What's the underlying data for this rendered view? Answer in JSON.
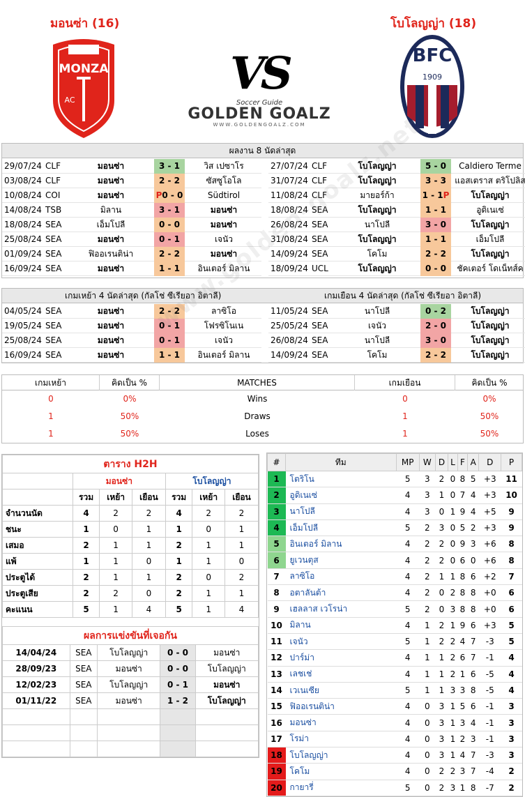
{
  "header": {
    "home_name": "มอนซ่า (16)",
    "away_name": "โบโลญญ่า (18)",
    "vs": "VS",
    "brand_small": "Soccer Guide",
    "brand_big": "GOLDEN GOALZ",
    "brand_url": "WWW.GOLDENGOALZ.COM",
    "home_logo_text": "MONZA",
    "home_logo_ac": "AC",
    "away_logo_text": "BFC",
    "away_logo_year": "1909",
    "watermark": "www.golden-goalz.net"
  },
  "last8": {
    "title": "ผลงาน 8 นัดล่าสุด",
    "home": [
      {
        "d": "29/07/24",
        "c": "CLF",
        "h": "มอนซ่า",
        "s": "3 - 1",
        "a": "วิส เปซาโร",
        "k": "g",
        "bh": true
      },
      {
        "d": "03/08/24",
        "c": "CLF",
        "h": "มอนซ่า",
        "s": "2 - 2",
        "a": "ซัสซูโอโล",
        "k": "o",
        "bh": true
      },
      {
        "d": "10/08/24",
        "c": "COI",
        "h": "มอนซ่า",
        "s": "0 - 0",
        "pre": "P",
        "a": "Südtirol",
        "k": "o",
        "bh": true
      },
      {
        "d": "14/08/24",
        "c": "TSB",
        "h": "มิลาน",
        "s": "3 - 1",
        "a": "มอนซ่า",
        "k": "r",
        "ba": true
      },
      {
        "d": "18/08/24",
        "c": "SEA",
        "h": "เอ็มโปลี",
        "s": "0 - 0",
        "a": "มอนซ่า",
        "k": "o",
        "ba": true
      },
      {
        "d": "25/08/24",
        "c": "SEA",
        "h": "มอนซ่า",
        "s": "0 - 1",
        "a": "เจนัว",
        "k": "r",
        "bh": true
      },
      {
        "d": "01/09/24",
        "c": "SEA",
        "h": "ฟิออเรนติน่า",
        "s": "2 - 2",
        "a": "มอนซ่า",
        "k": "o",
        "ba": true
      },
      {
        "d": "16/09/24",
        "c": "SEA",
        "h": "มอนซ่า",
        "s": "1 - 1",
        "a": "อินเตอร์ มิลาน",
        "k": "o",
        "bh": true
      }
    ],
    "away": [
      {
        "d": "27/07/24",
        "c": "CLF",
        "h": "โบโลญญ่า",
        "s": "5 - 0",
        "a": "Caldiero Terme",
        "k": "g",
        "bh": true
      },
      {
        "d": "31/07/24",
        "c": "CLF",
        "h": "โบโลญญ่า",
        "s": "3 - 3",
        "a": "แอสเตราส ตริโปลิส",
        "k": "o",
        "bh": true
      },
      {
        "d": "11/08/24",
        "c": "CLF",
        "h": "มายอร์ก้า",
        "s": "1 - 1",
        "post": "P",
        "a": "โบโลญญ่า",
        "k": "o",
        "ba": true
      },
      {
        "d": "18/08/24",
        "c": "SEA",
        "h": "โบโลญญ่า",
        "s": "1 - 1",
        "a": "อูดิเนเซ่",
        "k": "o",
        "bh": true
      },
      {
        "d": "26/08/24",
        "c": "SEA",
        "h": "นาโปลี",
        "s": "3 - 0",
        "a": "โบโลญญ่า",
        "k": "r",
        "ba": true
      },
      {
        "d": "31/08/24",
        "c": "SEA",
        "h": "โบโลญญ่า",
        "s": "1 - 1",
        "a": "เอ็มโปลี",
        "k": "o",
        "bh": true
      },
      {
        "d": "14/09/24",
        "c": "SEA",
        "h": "โคโม",
        "s": "2 - 2",
        "a": "โบโลญญ่า",
        "k": "o",
        "ba": true
      },
      {
        "d": "18/09/24",
        "c": "UCL",
        "h": "โบโลญญ่า",
        "s": "0 - 0",
        "a": "ชัคเตอร์ โดเน็ทส์ค",
        "k": "o",
        "bh": true
      }
    ]
  },
  "last4": {
    "home_title": "เกมเหย้า 4 นัดล่าสุด (กัลโช่ ซีเรียอา อิตาลี)",
    "away_title": "เกมเยือน 4 นัดล่าสุด (กัลโช่ ซีเรียอา อิตาลี)",
    "home": [
      {
        "d": "04/05/24",
        "c": "SEA",
        "h": "มอนซ่า",
        "s": "2 - 2",
        "a": "ลาซิโอ",
        "k": "o",
        "bh": true
      },
      {
        "d": "19/05/24",
        "c": "SEA",
        "h": "มอนซ่า",
        "s": "0 - 1",
        "a": "โฟรซิโนเน",
        "k": "r",
        "bh": true
      },
      {
        "d": "25/08/24",
        "c": "SEA",
        "h": "มอนซ่า",
        "s": "0 - 1",
        "a": "เจนัว",
        "k": "r",
        "bh": true
      },
      {
        "d": "16/09/24",
        "c": "SEA",
        "h": "มอนซ่า",
        "s": "1 - 1",
        "a": "อินเตอร์ มิลาน",
        "k": "o",
        "bh": true
      }
    ],
    "away": [
      {
        "d": "11/05/24",
        "c": "SEA",
        "h": "นาโปลี",
        "s": "0 - 2",
        "a": "โบโลญญ่า",
        "k": "g",
        "ba": true
      },
      {
        "d": "25/05/24",
        "c": "SEA",
        "h": "เจนัว",
        "s": "2 - 0",
        "a": "โบโลญญ่า",
        "k": "r",
        "ba": true
      },
      {
        "d": "26/08/24",
        "c": "SEA",
        "h": "นาโปลี",
        "s": "3 - 0",
        "a": "โบโลญญ่า",
        "k": "r",
        "ba": true
      },
      {
        "d": "14/09/24",
        "c": "SEA",
        "h": "โคโม",
        "s": "2 - 2",
        "a": "โบโลญญ่า",
        "k": "o",
        "ba": true
      }
    ]
  },
  "summary": {
    "h_home": "เกมเหย้า",
    "h_pct": "คิดเป็น %",
    "h_matches": "MATCHES",
    "h_away": "เกมเยือน",
    "h_pct2": "คิดเป็น %",
    "rows": [
      {
        "l": "Wins",
        "hv": "0",
        "hp": "0%",
        "av": "0",
        "ap": "0%"
      },
      {
        "l": "Draws",
        "hv": "1",
        "hp": "50%",
        "av": "1",
        "ap": "50%"
      },
      {
        "l": "Loses",
        "hv": "1",
        "hp": "50%",
        "av": "1",
        "ap": "50%"
      }
    ]
  },
  "h2h": {
    "title": "ตาราง H2H",
    "home": "มอนซ่า",
    "away": "โบโลญญ่า",
    "cols": [
      "รวม",
      "เหย้า",
      "เยือน",
      "รวม",
      "เหย้า",
      "เยือน"
    ],
    "rows": [
      {
        "l": "จำนวนนัด",
        "v": [
          "4",
          "2",
          "2",
          "4",
          "2",
          "2"
        ]
      },
      {
        "l": "ชนะ",
        "v": [
          "1",
          "0",
          "1",
          "1",
          "0",
          "1"
        ]
      },
      {
        "l": "เสมอ",
        "v": [
          "2",
          "1",
          "1",
          "2",
          "1",
          "1"
        ]
      },
      {
        "l": "แพ้",
        "v": [
          "1",
          "1",
          "0",
          "1",
          "1",
          "0"
        ]
      },
      {
        "l": "ประตูได้",
        "v": [
          "2",
          "1",
          "1",
          "2",
          "0",
          "2"
        ]
      },
      {
        "l": "ประตูเสีย",
        "v": [
          "2",
          "2",
          "0",
          "2",
          "1",
          "1"
        ]
      },
      {
        "l": "คะแนน",
        "v": [
          "5",
          "1",
          "4",
          "5",
          "1",
          "4"
        ]
      }
    ],
    "matches_title": "ผลการแข่งขันที่เจอกัน",
    "matches": [
      {
        "d": "14/04/24",
        "c": "SEA",
        "h": "โบโลญญ่า",
        "s": "0 - 0",
        "a": "มอนซ่า"
      },
      {
        "d": "28/09/23",
        "c": "SEA",
        "h": "มอนซ่า",
        "s": "0 - 0",
        "a": "โบโลญญ่า"
      },
      {
        "d": "12/02/23",
        "c": "SEA",
        "h": "โบโลญญ่า",
        "s": "0 - 1",
        "a": "มอนซ่า",
        "ba": true
      },
      {
        "d": "01/11/22",
        "c": "SEA",
        "h": "มอนซ่า",
        "s": "1 - 2",
        "a": "โบโลญญ่า",
        "ba": true
      }
    ]
  },
  "standings": {
    "cols": [
      "#",
      "ทีม",
      "MP",
      "W",
      "D",
      "L",
      "F",
      "A",
      "D",
      "P"
    ],
    "rows": [
      [
        "1",
        "โตริโน",
        "5",
        "3",
        "2",
        "0",
        "8",
        "5",
        "+3",
        "11"
      ],
      [
        "2",
        "อูดิเนเซ่",
        "4",
        "3",
        "1",
        "0",
        "7",
        "4",
        "+3",
        "10"
      ],
      [
        "3",
        "นาโปลี",
        "4",
        "3",
        "0",
        "1",
        "9",
        "4",
        "+5",
        "9"
      ],
      [
        "4",
        "เอ็มโปลี",
        "5",
        "2",
        "3",
        "0",
        "5",
        "2",
        "+3",
        "9"
      ],
      [
        "5",
        "อินเตอร์ มิลาน",
        "4",
        "2",
        "2",
        "0",
        "9",
        "3",
        "+6",
        "8"
      ],
      [
        "6",
        "ยูเวนตุส",
        "4",
        "2",
        "2",
        "0",
        "6",
        "0",
        "+6",
        "8"
      ],
      [
        "7",
        "ลาซิโอ",
        "4",
        "2",
        "1",
        "1",
        "8",
        "6",
        "+2",
        "7"
      ],
      [
        "8",
        "อตาลันต้า",
        "4",
        "2",
        "0",
        "2",
        "8",
        "8",
        "+0",
        "6"
      ],
      [
        "9",
        "เฮลลาส เวโรน่า",
        "5",
        "2",
        "0",
        "3",
        "8",
        "8",
        "+0",
        "6"
      ],
      [
        "10",
        "มิลาน",
        "4",
        "1",
        "2",
        "1",
        "9",
        "6",
        "+3",
        "5"
      ],
      [
        "11",
        "เจนัว",
        "5",
        "1",
        "2",
        "2",
        "4",
        "7",
        "-3",
        "5"
      ],
      [
        "12",
        "ปาร์ม่า",
        "4",
        "1",
        "1",
        "2",
        "6",
        "7",
        "-1",
        "4"
      ],
      [
        "13",
        "เลชเช่",
        "4",
        "1",
        "1",
        "2",
        "1",
        "6",
        "-5",
        "4"
      ],
      [
        "14",
        "เวเนเซีย",
        "5",
        "1",
        "1",
        "3",
        "3",
        "8",
        "-5",
        "4"
      ],
      [
        "15",
        "ฟิออเรนติน่า",
        "4",
        "0",
        "3",
        "1",
        "5",
        "6",
        "-1",
        "3"
      ],
      [
        "16",
        "มอนซ่า",
        "4",
        "0",
        "3",
        "1",
        "3",
        "4",
        "-1",
        "3"
      ],
      [
        "17",
        "โรม่า",
        "4",
        "0",
        "3",
        "1",
        "2",
        "3",
        "-1",
        "3"
      ],
      [
        "18",
        "โบโลญญ่า",
        "4",
        "0",
        "3",
        "1",
        "4",
        "7",
        "-3",
        "3"
      ],
      [
        "19",
        "โคโม",
        "4",
        "0",
        "2",
        "2",
        "3",
        "7",
        "-4",
        "2"
      ],
      [
        "20",
        "กายารี่",
        "5",
        "0",
        "2",
        "3",
        "1",
        "8",
        "-7",
        "2"
      ]
    ],
    "colors": {
      "top4": "#1db954",
      "euro": "#8fd68f",
      "rel": "#e41b1b"
    }
  }
}
